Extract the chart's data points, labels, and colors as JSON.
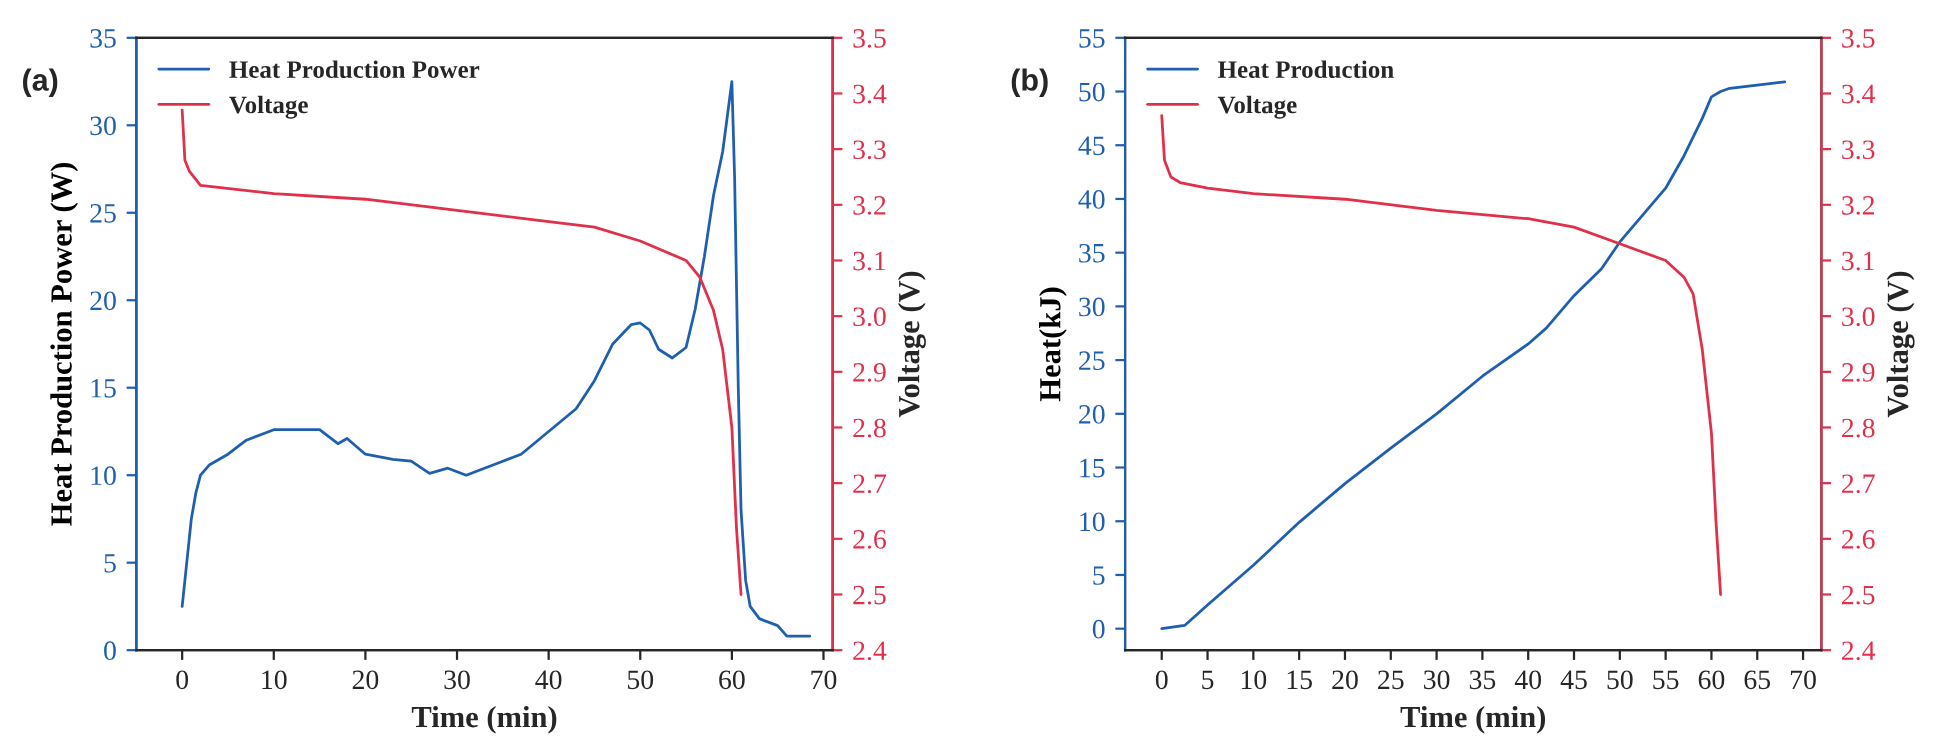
{
  "chart_data": [
    {
      "type": "line",
      "annotations": [
        "(a)"
      ],
      "xlabel": "Time (min)",
      "ylabel": "Heat Production Power (W)",
      "y2label": "Voltage (V)",
      "xlim": [
        -5,
        71
      ],
      "xticks": [
        0,
        10,
        20,
        30,
        40,
        50,
        60,
        70
      ],
      "ylim": [
        0,
        35
      ],
      "yticks": [
        0,
        5,
        10,
        15,
        20,
        25,
        30,
        35
      ],
      "y2lim": [
        2.4,
        3.5
      ],
      "y2ticks": [
        {
          "value": 2.4,
          "label": "2.4"
        },
        {
          "value": 2.5,
          "label": "2.5"
        },
        {
          "value": 2.6,
          "label": "2.6"
        },
        {
          "value": 2.7,
          "label": "2.7"
        },
        {
          "value": 2.8,
          "label": "2.8"
        },
        {
          "value": 2.9,
          "label": "2.9"
        },
        {
          "value": 3.0,
          "label": "3.0"
        },
        {
          "value": 3.1,
          "label": "3.1"
        },
        {
          "value": 3.2,
          "label": "3.2"
        },
        {
          "value": 3.3,
          "label": "3.3"
        },
        {
          "value": 3.4,
          "label": "3.4"
        },
        {
          "value": 3.5,
          "label": "3.5"
        }
      ],
      "legend": "top left",
      "grid": false,
      "series": [
        {
          "name": "Heat Production Power",
          "color": "#1f5fb0",
          "x": [
            0,
            0.5,
            1,
            1.5,
            2,
            3,
            5,
            7,
            10,
            15,
            17,
            18,
            20,
            23,
            25,
            27,
            29,
            31,
            33,
            35,
            37,
            40,
            43,
            45,
            47,
            49,
            50,
            51,
            52,
            53.5,
            55,
            56,
            57,
            58,
            59,
            59.5,
            60,
            60.3,
            60.7,
            61,
            61.5,
            62,
            63,
            65,
            66,
            68.5
          ],
          "values": [
            2.5,
            5,
            7.5,
            9,
            10,
            10.6,
            11.2,
            12,
            12.6,
            12.6,
            11.8,
            12.1,
            11.2,
            10.9,
            10.8,
            10.1,
            10.4,
            10,
            10.4,
            10.8,
            11.2,
            12.5,
            13.8,
            15.4,
            17.5,
            18.6,
            18.7,
            18.3,
            17.2,
            16.7,
            17.3,
            19.5,
            22.5,
            26,
            28.5,
            30.5,
            32.5,
            27,
            15,
            8,
            4,
            2.5,
            1.8,
            1.4,
            0.8,
            0.8
          ]
        },
        {
          "name": "Voltage",
          "color": "#e0304a",
          "axis": "y2",
          "x": [
            0,
            0.3,
            0.8,
            2,
            10,
            20,
            30,
            40,
            45,
            50,
            55,
            56.5,
            58,
            59,
            60,
            60.5,
            61
          ],
          "values": [
            3.37,
            3.28,
            3.26,
            3.235,
            3.22,
            3.21,
            3.19,
            3.17,
            3.16,
            3.135,
            3.1,
            3.07,
            3.01,
            2.94,
            2.8,
            2.62,
            2.5
          ]
        }
      ]
    },
    {
      "type": "line",
      "annotations": [
        "(b)"
      ],
      "xlabel": "Time (min)",
      "ylabel": "Heat(kJ)",
      "y2label": "Voltage (V)",
      "xlim": [
        -4,
        72
      ],
      "xticks": [
        0,
        5,
        10,
        15,
        20,
        25,
        30,
        35,
        40,
        45,
        50,
        55,
        60,
        65,
        70
      ],
      "ylim": [
        -2,
        55
      ],
      "yticks": [
        0,
        5,
        10,
        15,
        20,
        25,
        30,
        35,
        40,
        45,
        50,
        55
      ],
      "y2lim": [
        2.4,
        3.5
      ],
      "y2ticks": [
        {
          "value": 2.4,
          "label": "2.4"
        },
        {
          "value": 2.5,
          "label": "2.5"
        },
        {
          "value": 2.6,
          "label": "2.6"
        },
        {
          "value": 2.7,
          "label": "2.7"
        },
        {
          "value": 2.8,
          "label": "2.8"
        },
        {
          "value": 2.9,
          "label": "2.9"
        },
        {
          "value": 3.0,
          "label": "3.0"
        },
        {
          "value": 3.1,
          "label": "3.1"
        },
        {
          "value": 3.2,
          "label": "3.2"
        },
        {
          "value": 3.3,
          "label": "3.3"
        },
        {
          "value": 3.4,
          "label": "3.4"
        },
        {
          "value": 3.5,
          "label": "3.5"
        }
      ],
      "legend": "top left",
      "grid": false,
      "series": [
        {
          "name": "Heat Production",
          "color": "#1f5fb0",
          "x": [
            0,
            2.5,
            5,
            10,
            15,
            20,
            25,
            30,
            35,
            40,
            42,
            45,
            48,
            50,
            55,
            57,
            59,
            60,
            61,
            62,
            65,
            68
          ],
          "values": [
            0,
            0.3,
            2.2,
            5.9,
            9.9,
            13.5,
            16.8,
            20,
            23.5,
            26.5,
            28,
            31,
            33.5,
            36,
            41,
            44,
            47.5,
            49.5,
            50,
            50.3,
            50.6,
            50.9
          ]
        },
        {
          "name": "Voltage",
          "color": "#e0304a",
          "axis": "y2",
          "x": [
            0,
            0.3,
            1,
            2,
            5,
            10,
            20,
            30,
            40,
            45,
            50,
            55,
            57,
            58,
            59,
            60,
            60.5,
            61
          ],
          "values": [
            3.36,
            3.28,
            3.25,
            3.24,
            3.23,
            3.22,
            3.21,
            3.19,
            3.175,
            3.16,
            3.13,
            3.1,
            3.07,
            3.04,
            2.94,
            2.79,
            2.63,
            2.5
          ]
        }
      ]
    }
  ]
}
